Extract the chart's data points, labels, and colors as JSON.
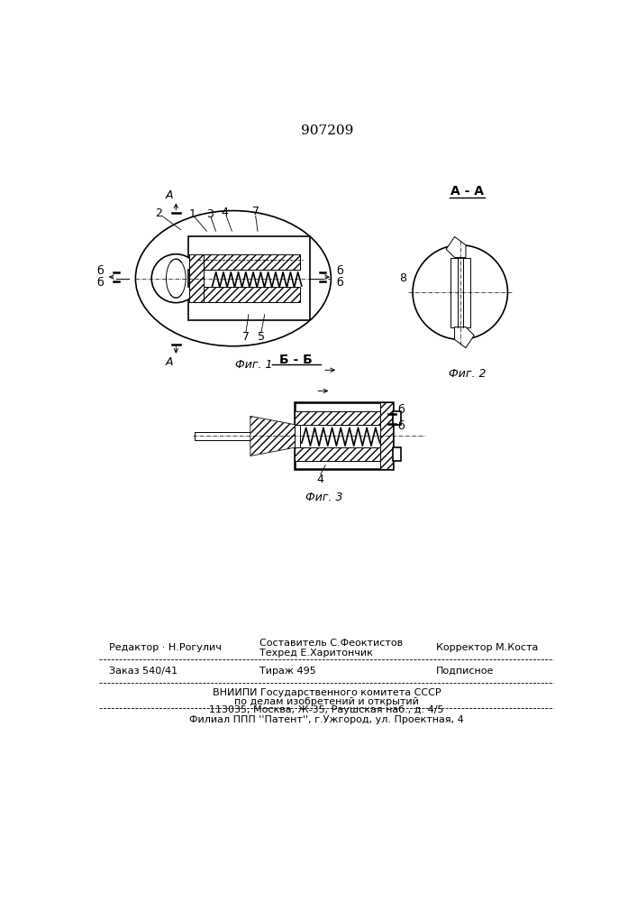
{
  "patent_number": "907209",
  "bg_color": "#ffffff",
  "lc": "#000000",
  "fig1_caption": "Фиг. 1",
  "fig2_caption": "Фиг. 2",
  "fig3_caption": "Фиг. 3",
  "section_aa": "A - A",
  "section_bb": "Б - Б",
  "footer_editor": "Редактор · Н.Рогулич",
  "footer_sostavitel": "Составитель С.Феоктистов",
  "footer_tehred": "Техред Е.Харитончик",
  "footer_korrektor": "Корректор М.Коста",
  "footer_zakaz": "Заказ 540/41",
  "footer_tirazh": "Тираж 495",
  "footer_podpisnoe": "Подписное",
  "footer_vniip1": "ВНИИПИ Государственного комитета СССР",
  "footer_vniip2": "по делам изобретений и открытий",
  "footer_address": "113035, Москва, Ж-35, Раушская наб., д. 4/5",
  "footer_filial": "Филиал ППП ''Патент'', г.Ужгород, ул. Проектная, 4"
}
